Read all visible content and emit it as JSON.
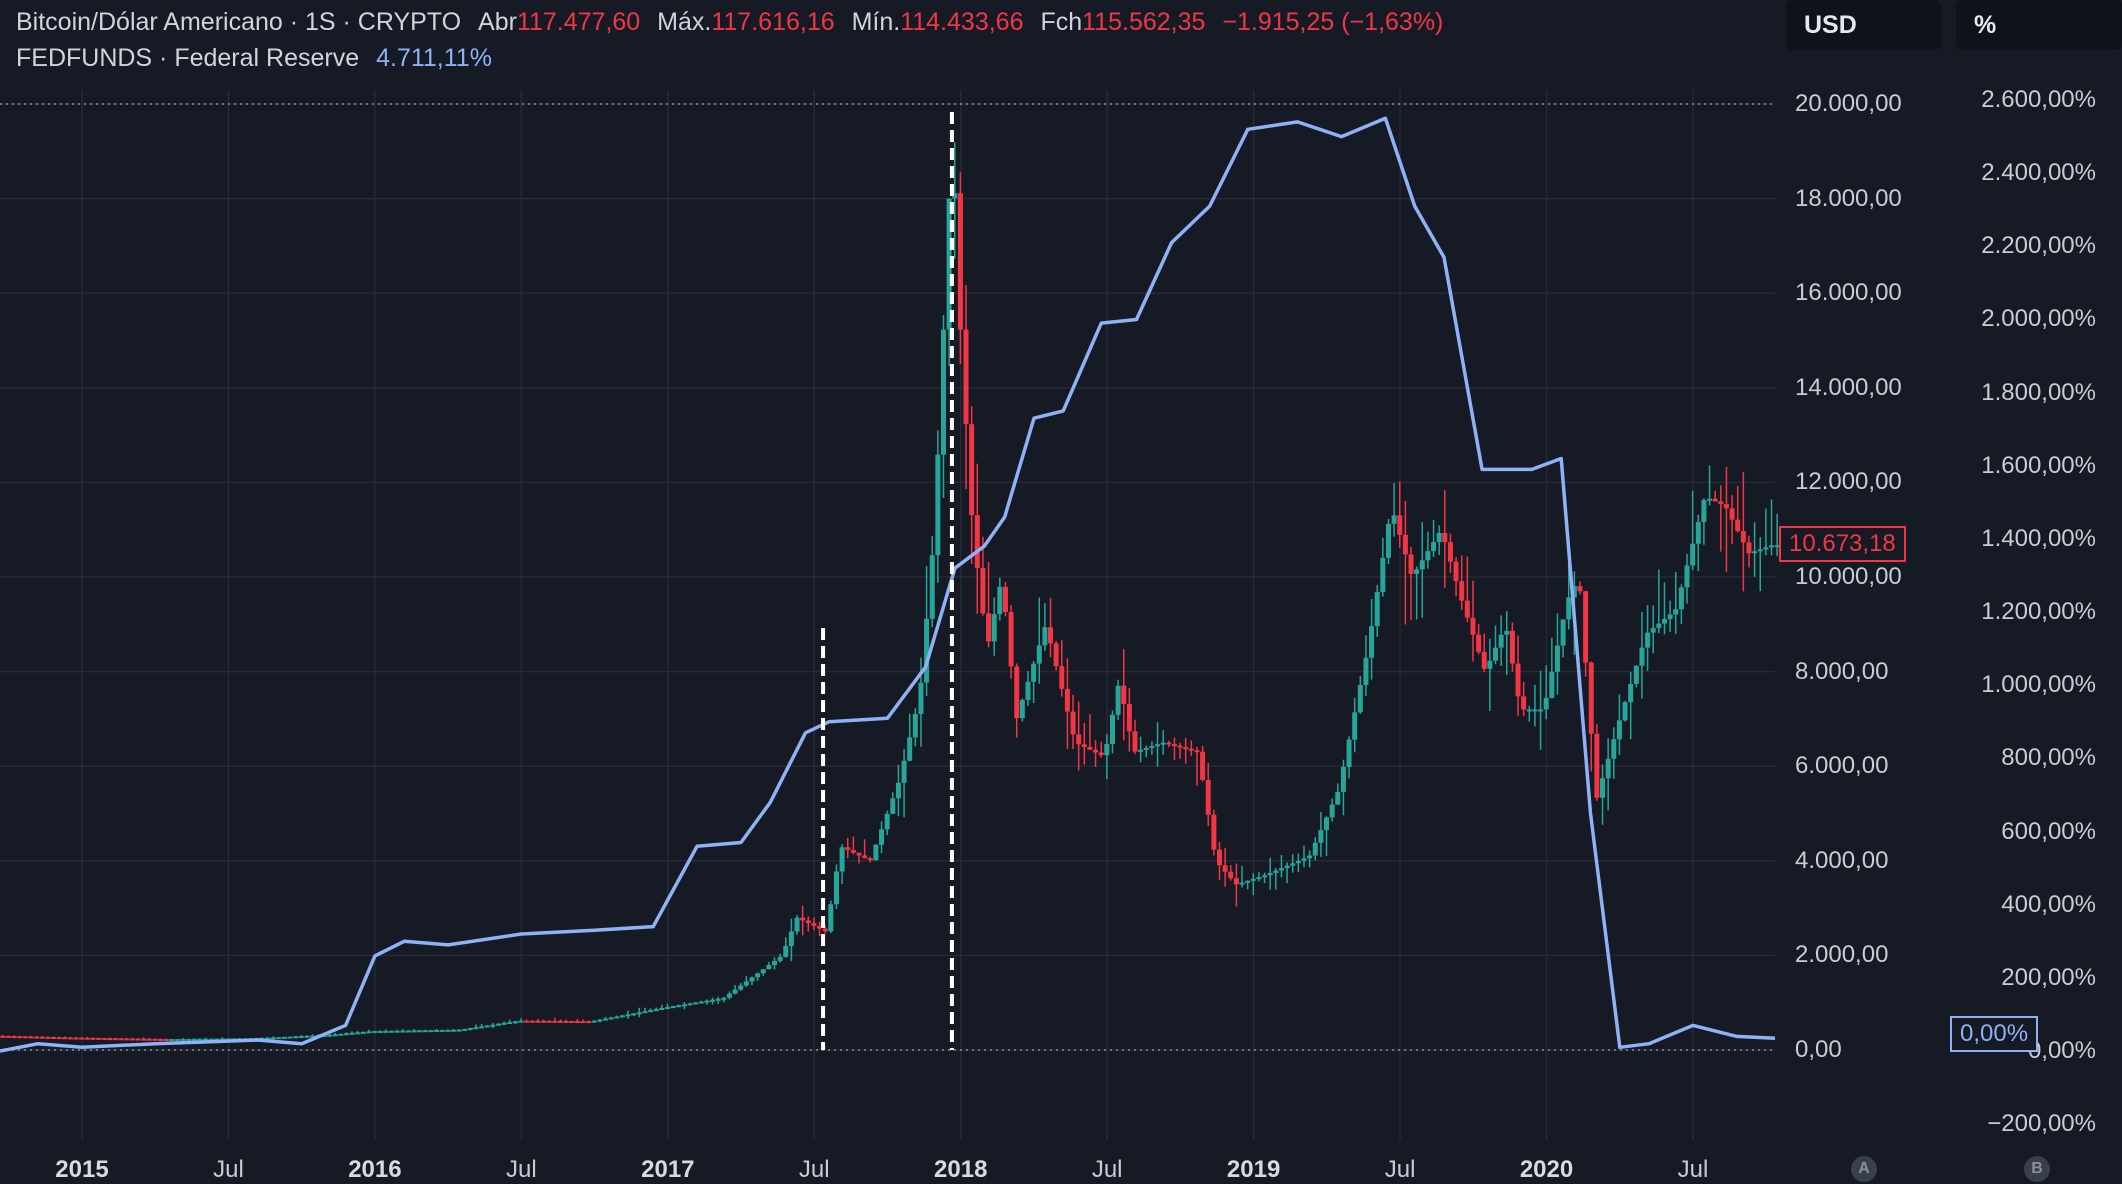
{
  "legend": {
    "symbol": "Bitcoin/Dólar Americano · 1S · CRYPTO",
    "open_label": "Abr",
    "open": "117.477,60",
    "high_label": "Máx.",
    "high": "117.616,16",
    "low_label": "Mín.",
    "low": "114.433,66",
    "close_label": "Fch",
    "close": "115.562,35",
    "change": "−1.915,25 (−1,63%)",
    "fed_label": "FEDFUNDS · Federal Reserve",
    "fed_value": "4.711,11%"
  },
  "buttons": {
    "currency": "USD",
    "percent": "%",
    "scale_a": "A",
    "scale_b": "B"
  },
  "tags": {
    "last_price": "10.673,18",
    "last_pct": "0,00%"
  },
  "colors": {
    "background": "#161a25",
    "up": "#26a69a",
    "down": "#f23645",
    "fed": "#8fb1f5"
  },
  "chart_data": {
    "type": "line",
    "x_ticks": [
      {
        "label": "2015",
        "t": 2015.0,
        "year": true
      },
      {
        "label": "Jul",
        "t": 2015.5
      },
      {
        "label": "2016",
        "t": 2016.0,
        "year": true
      },
      {
        "label": "Jul",
        "t": 2016.5
      },
      {
        "label": "2017",
        "t": 2017.0,
        "year": true
      },
      {
        "label": "Jul",
        "t": 2017.5
      },
      {
        "label": "2018",
        "t": 2018.0,
        "year": true
      },
      {
        "label": "Jul",
        "t": 2018.5
      },
      {
        "label": "2019",
        "t": 2019.0,
        "year": true
      },
      {
        "label": "Jul",
        "t": 2019.5
      },
      {
        "label": "2020",
        "t": 2020.0,
        "year": true
      },
      {
        "label": "Jul",
        "t": 2020.5
      }
    ],
    "y_left_ticks": [
      "20.000,00",
      "18.000,00",
      "16.000,00",
      "14.000,00",
      "12.000,00",
      "10.000,00",
      "8.000,00",
      "6.000,00",
      "4.000,00",
      "2.000,00",
      "0,00"
    ],
    "y_left_values": [
      20000,
      18000,
      16000,
      14000,
      12000,
      10000,
      8000,
      6000,
      4000,
      2000,
      0
    ],
    "y_right_ticks": [
      "2.600,00%",
      "2.400,00%",
      "2.200,00%",
      "2.000,00%",
      "1.800,00%",
      "1.600,00%",
      "1.400,00%",
      "1.200,00%",
      "1.000,00%",
      "800,00%",
      "600,00%",
      "400,00%",
      "200,00%",
      "0,00%",
      "−200,00%"
    ],
    "y_right_values": [
      2600,
      2400,
      2200,
      2000,
      1800,
      1600,
      1400,
      1200,
      1000,
      800,
      600,
      400,
      200,
      0,
      -200
    ],
    "y_left_range": [
      0,
      20000
    ],
    "y_right_range": [
      -200,
      2600
    ],
    "x_range": [
      2014.72,
      2020.78
    ],
    "series": [
      {
        "name": "Bitcoin/Dólar Americano",
        "kind": "price",
        "points": [
          [
            2014.72,
            300
          ],
          [
            2015.0,
            260
          ],
          [
            2015.3,
            230
          ],
          [
            2015.6,
            250
          ],
          [
            2015.85,
            320
          ],
          [
            2016.0,
            400
          ],
          [
            2016.3,
            430
          ],
          [
            2016.5,
            620
          ],
          [
            2016.75,
            610
          ],
          [
            2017.0,
            900
          ],
          [
            2017.2,
            1100
          ],
          [
            2017.4,
            2000
          ],
          [
            2017.45,
            2800
          ],
          [
            2017.55,
            2500
          ],
          [
            2017.6,
            4300
          ],
          [
            2017.7,
            4000
          ],
          [
            2017.8,
            5700
          ],
          [
            2017.87,
            7500
          ],
          [
            2017.92,
            11000
          ],
          [
            2017.96,
            16500
          ],
          [
            2017.98,
            19500
          ],
          [
            2018.01,
            15000
          ],
          [
            2018.05,
            11000
          ],
          [
            2018.1,
            8500
          ],
          [
            2018.15,
            10000
          ],
          [
            2018.2,
            7000
          ],
          [
            2018.3,
            9000
          ],
          [
            2018.4,
            6500
          ],
          [
            2018.5,
            6200
          ],
          [
            2018.55,
            7800
          ],
          [
            2018.6,
            6300
          ],
          [
            2018.7,
            6500
          ],
          [
            2018.82,
            6300
          ],
          [
            2018.88,
            4000
          ],
          [
            2018.95,
            3500
          ],
          [
            2019.05,
            3700
          ],
          [
            2019.2,
            4100
          ],
          [
            2019.3,
            5500
          ],
          [
            2019.4,
            8500
          ],
          [
            2019.48,
            11500
          ],
          [
            2019.55,
            10000
          ],
          [
            2019.65,
            11000
          ],
          [
            2019.72,
            9500
          ],
          [
            2019.8,
            8000
          ],
          [
            2019.87,
            9000
          ],
          [
            2019.92,
            7200
          ],
          [
            2020.0,
            7200
          ],
          [
            2020.08,
            9500
          ],
          [
            2020.12,
            10000
          ],
          [
            2020.18,
            5300
          ],
          [
            2020.25,
            6800
          ],
          [
            2020.35,
            8800
          ],
          [
            2020.45,
            9300
          ],
          [
            2020.55,
            11700
          ],
          [
            2020.62,
            11500
          ],
          [
            2020.7,
            10500
          ],
          [
            2020.78,
            10673
          ]
        ]
      },
      {
        "name": "FEDFUNDS · Federal Reserve",
        "kind": "line",
        "points": [
          [
            2014.72,
            0
          ],
          [
            2014.85,
            20
          ],
          [
            2015.0,
            10
          ],
          [
            2015.25,
            20
          ],
          [
            2015.6,
            30
          ],
          [
            2015.75,
            20
          ],
          [
            2015.9,
            70
          ],
          [
            2016.0,
            260
          ],
          [
            2016.1,
            300
          ],
          [
            2016.25,
            290
          ],
          [
            2016.5,
            320
          ],
          [
            2016.75,
            330
          ],
          [
            2016.95,
            340
          ],
          [
            2017.1,
            560
          ],
          [
            2017.25,
            570
          ],
          [
            2017.35,
            680
          ],
          [
            2017.47,
            870
          ],
          [
            2017.55,
            900
          ],
          [
            2017.75,
            910
          ],
          [
            2017.88,
            1050
          ],
          [
            2017.98,
            1320
          ],
          [
            2018.08,
            1380
          ],
          [
            2018.15,
            1460
          ],
          [
            2018.25,
            1730
          ],
          [
            2018.35,
            1750
          ],
          [
            2018.48,
            1990
          ],
          [
            2018.6,
            2000
          ],
          [
            2018.72,
            2210
          ],
          [
            2018.85,
            2310
          ],
          [
            2018.98,
            2520
          ],
          [
            2019.15,
            2540
          ],
          [
            2019.3,
            2500
          ],
          [
            2019.45,
            2550
          ],
          [
            2019.55,
            2310
          ],
          [
            2019.65,
            2170
          ],
          [
            2019.78,
            1590
          ],
          [
            2019.95,
            1590
          ],
          [
            2020.05,
            1620
          ],
          [
            2020.15,
            650
          ],
          [
            2020.25,
            10
          ],
          [
            2020.35,
            20
          ],
          [
            2020.5,
            70
          ],
          [
            2020.65,
            40
          ],
          [
            2020.78,
            35
          ]
        ]
      }
    ],
    "vertical_markers": [
      2017.53,
      2017.97
    ],
    "grid": true,
    "legend_position": "top-left"
  }
}
